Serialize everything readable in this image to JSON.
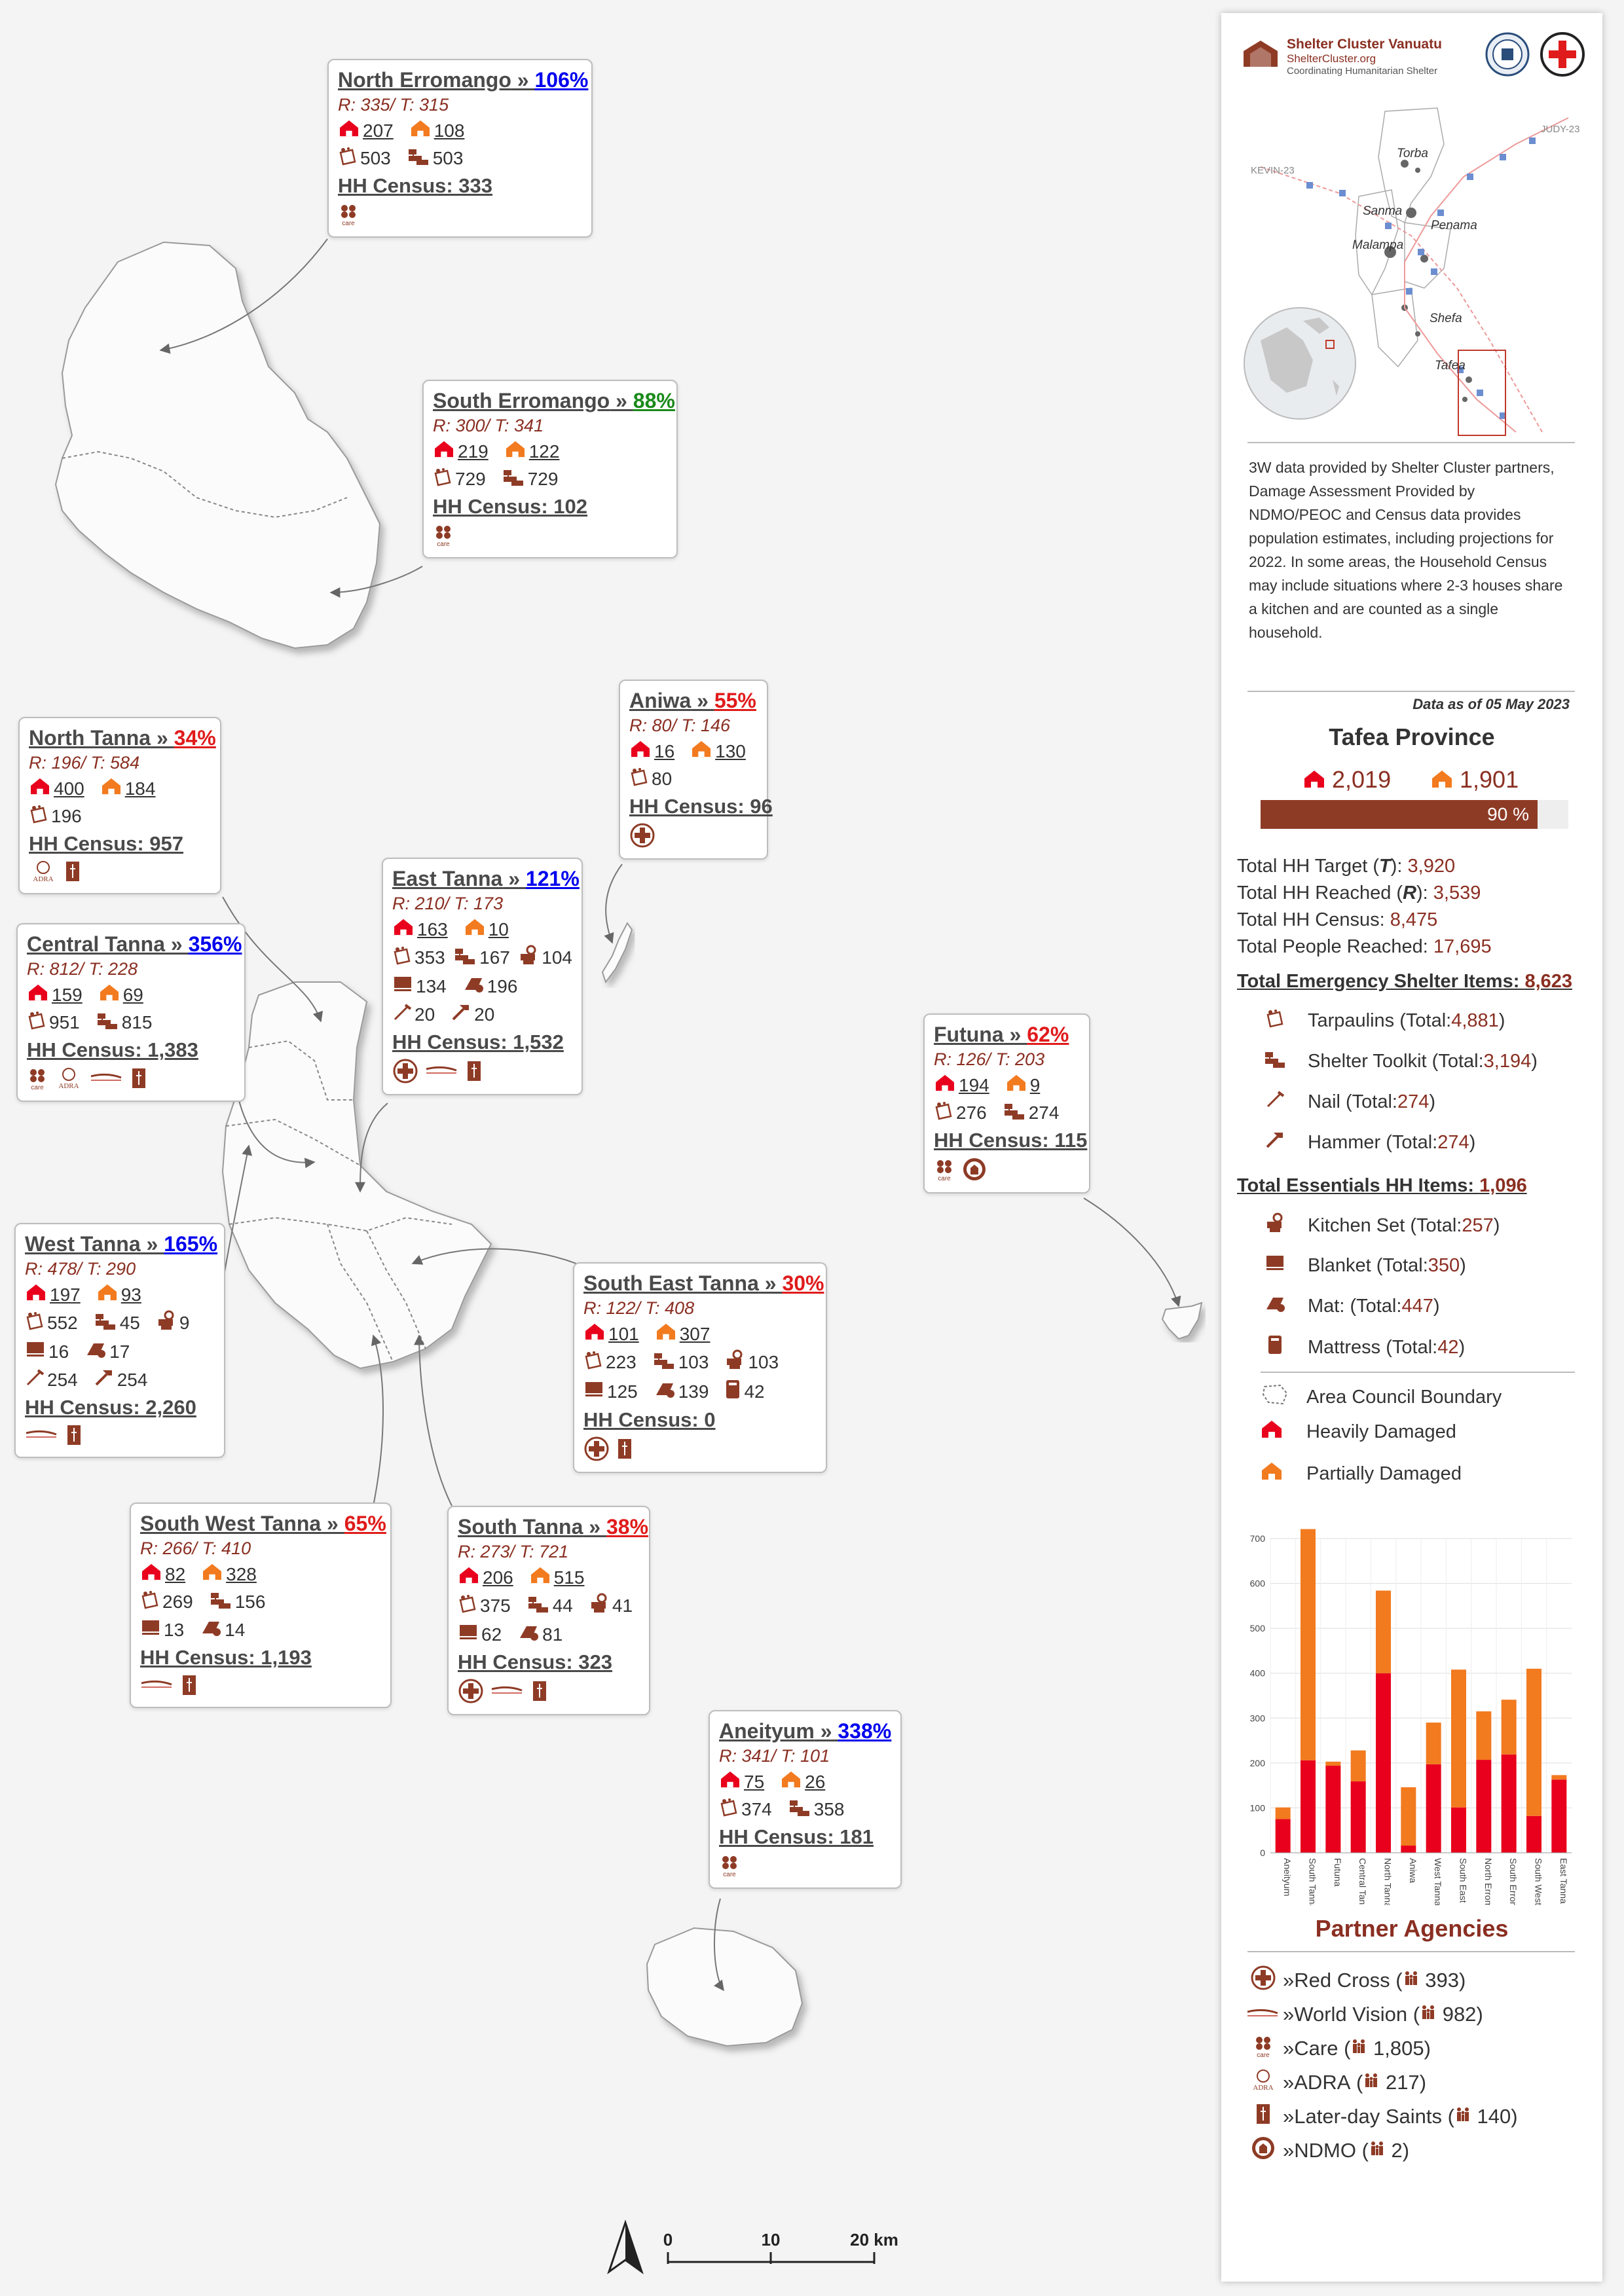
{
  "colors": {
    "heavy": "#e8001c",
    "partial": "#f27a1f",
    "accent": "#8a2f22",
    "brown": "#8e3b26",
    "blue": "#0000ee",
    "red": "#e01b1b",
    "green": "#1a8a1a"
  },
  "boxes": [
    {
      "id": "north-erromango",
      "name": "North Erromango",
      "pct": "106%",
      "pct_color": "#0000ee",
      "rt": "R: 335/ T: 315",
      "heavy": "207",
      "partial": "108",
      "tarp": "503",
      "toolkit": "503",
      "hh": "HH Census: 333",
      "logos": [
        "care"
      ]
    },
    {
      "id": "south-erromango",
      "name": "South Erromango",
      "pct": "88%",
      "pct_color": "#1a8a1a",
      "rt": "R: 300/ T: 341",
      "heavy": "219",
      "partial": "122",
      "tarp": "729",
      "toolkit": "729",
      "hh": "HH Census: 102",
      "logos": [
        "care"
      ]
    },
    {
      "id": "north-tanna",
      "name": "North Tanna",
      "pct": "34%",
      "pct_color": "#e01b1b",
      "rt": "R: 196/ T: 584",
      "heavy": "400",
      "partial": "184",
      "tarp": "196",
      "hh": "HH Census: 957",
      "logos": [
        "adra",
        "lds"
      ]
    },
    {
      "id": "aniwa",
      "name": "Aniwa",
      "pct": "55%",
      "pct_color": "#e01b1b",
      "rt": "R: 80/ T: 146",
      "heavy": "16",
      "partial": "130",
      "tarp": "80",
      "hh": "HH Census: 96",
      "logos": [
        "redcross"
      ]
    },
    {
      "id": "east-tanna",
      "name": "East Tanna",
      "pct": "121%",
      "pct_color": "#0000ee",
      "rt": "R: 210/ T: 173",
      "heavy": "163",
      "partial": "10",
      "tarp": "353",
      "toolkit": "167",
      "kitchen": "104",
      "blanket": "134",
      "mat": "196",
      "nail": "20",
      "hammer": "20",
      "hh": "HH Census: 1,532",
      "logos": [
        "redcross",
        "worldvision",
        "lds"
      ]
    },
    {
      "id": "central-tanna",
      "name": "Central Tanna",
      "pct": "356%",
      "pct_color": "#0000ee",
      "rt": "R: 812/ T: 228",
      "heavy": "159",
      "partial": "69",
      "tarp": "951",
      "toolkit": "815",
      "hh": "HH Census: 1,383",
      "logos": [
        "care",
        "adra",
        "worldvision",
        "lds"
      ]
    },
    {
      "id": "futuna",
      "name": "Futuna",
      "pct": "62%",
      "pct_color": "#e01b1b",
      "rt": "R: 126/ T: 203",
      "heavy": "194",
      "partial": "9",
      "tarp": "276",
      "toolkit": "274",
      "hh": "HH Census: 115",
      "logos": [
        "care",
        "ndmo"
      ]
    },
    {
      "id": "west-tanna",
      "name": "West Tanna",
      "pct": "165%",
      "pct_color": "#0000ee",
      "rt": "R: 478/ T: 290",
      "heavy": "197",
      "partial": "93",
      "tarp": "552",
      "toolkit": "45",
      "kitchen": "9",
      "blanket": "16",
      "mat": "17",
      "nail": "254",
      "hammer": "254",
      "hh": "HH Census: 2,260",
      "logos": [
        "worldvision",
        "lds"
      ]
    },
    {
      "id": "south-east-tanna",
      "name": "South East Tanna",
      "pct": "30%",
      "pct_color": "#e01b1b",
      "rt": "R: 122/ T: 408",
      "heavy": "101",
      "partial": "307",
      "tarp": "223",
      "toolkit": "103",
      "kitchen": "103",
      "blanket": "125",
      "mat": "139",
      "mattress": "42",
      "hh": "HH Census: 0",
      "logos": [
        "redcross",
        "lds"
      ]
    },
    {
      "id": "south-west-tanna",
      "name": "South West Tanna",
      "pct": "65%",
      "pct_color": "#e01b1b",
      "rt": "R: 266/ T: 410",
      "heavy": "82",
      "partial": "328",
      "tarp": "269",
      "toolkit": "156",
      "blanket": "13",
      "mat": "14",
      "hh": "HH Census: 1,193",
      "logos": [
        "worldvision",
        "lds"
      ]
    },
    {
      "id": "south-tanna",
      "name": "South Tanna",
      "pct": "38%",
      "pct_color": "#e01b1b",
      "rt": "R: 273/ T: 721",
      "heavy": "206",
      "partial": "515",
      "tarp": "375",
      "toolkit": "44",
      "kitchen": "41",
      "blanket": "62",
      "mat": "81",
      "hh": "HH Census: 323",
      "logos": [
        "redcross",
        "worldvision",
        "lds"
      ]
    },
    {
      "id": "aneityum",
      "name": "Aneityum",
      "pct": "338%",
      "pct_color": "#0000ee",
      "rt": "R: 341/ T: 101",
      "heavy": "75",
      "partial": "26",
      "tarp": "374",
      "toolkit": "358",
      "hh": "HH Census: 181",
      "logos": [
        "care"
      ]
    }
  ],
  "map_labels": {
    "scale_0": "0",
    "scale_10": "10",
    "scale_20": "20 km"
  },
  "inset": {
    "labels": [
      "Torba",
      "Sanma",
      "Penama",
      "Malampa",
      "Shefa",
      "Tafea"
    ],
    "tracks": [
      "KEVIN-23",
      "JUDY-23"
    ]
  },
  "panel": {
    "org": "Shelter Cluster Vanuatu",
    "org_url": "ShelterCluster.org",
    "org_tag": "Coordinating Humanitarian Shelter",
    "description": "3W data provided by Shelter Cluster partners, Damage Assessment Provided by NDMO/PEOC and Census data provides population estimates, including projections for 2022. In some areas, the Household Census may include situations where 2-3 houses share a kitchen and are counted as a single household.",
    "as_of": "Data as of 05 May 2023",
    "province": "Tafea Province",
    "heavy_total": "2,019",
    "partial_total": "1,901",
    "progress": 0.9,
    "progress_label": "90 %",
    "stats": [
      {
        "label": "Total HH Target (",
        "mid": "T",
        "after": "): ",
        "value": "3,920"
      },
      {
        "label": "Total HH Reached (",
        "mid": "R",
        "after": "): ",
        "value": "3,539"
      },
      {
        "label": "Total HH Census: ",
        "mid": "",
        "after": "",
        "value": "8,475"
      },
      {
        "label": "Total People Reached: ",
        "mid": "",
        "after": "",
        "value": "17,695"
      }
    ],
    "esi_title": "Total Emergency Shelter Items: ",
    "esi_value": "8,623",
    "esi": [
      {
        "icon": "tarpaulin-icon",
        "label": "Tarpaulins (Total: ",
        "value": "4,881",
        "close": ")"
      },
      {
        "icon": "shelter-toolkit-icon",
        "label": "Shelter Toolkit (Total: ",
        "value": "3,194",
        "close": ")"
      },
      {
        "icon": "nail-icon",
        "label": "Nail (Total: ",
        "value": "274",
        "close": " )"
      },
      {
        "icon": "hammer-icon",
        "label": "Hammer (Total: ",
        "value": "274",
        "close": " )"
      }
    ],
    "ehi_title": "Total Essentials HH Items: ",
    "ehi_value": "1,096",
    "ehi": [
      {
        "icon": "kitchen-set-icon",
        "label": "Kitchen Set (Total: ",
        "value": "257",
        "close": ")"
      },
      {
        "icon": "blanket-icon",
        "label": "Blanket (Total: ",
        "value": "350",
        "close": ")"
      },
      {
        "icon": "mat-icon",
        "label": "Mat: (Total: ",
        "value": "447",
        "close": ")"
      },
      {
        "icon": "mattress-icon",
        "label": "Mattress (Total: ",
        "value": "42",
        "close": " )"
      }
    ],
    "legend": [
      {
        "icon": "area-boundary-icon",
        "label": "Area Council Boundary"
      },
      {
        "icon": "heavily-damaged-icon",
        "label": "Heavily Damaged"
      },
      {
        "icon": "partially-damaged-icon",
        "label": "Partially Damaged"
      }
    ],
    "partners_title": "Partner Agencies",
    "partners": [
      {
        "icon": "redcross",
        "name": "Red Cross",
        "count": "393"
      },
      {
        "icon": "worldvision",
        "name": "World Vision",
        "count": "982"
      },
      {
        "icon": "care",
        "name": "Care",
        "count": "1,805"
      },
      {
        "icon": "adra",
        "name": "ADRA",
        "count": "217"
      },
      {
        "icon": "lds",
        "name": "Later-day Saints",
        "count": "140"
      },
      {
        "icon": "ndmo",
        "name": "NDMO",
        "count": "2"
      }
    ]
  },
  "chart_data": {
    "type": "bar",
    "stacked": true,
    "categories": [
      "Aneityum",
      "South Tanna",
      "Futuna",
      "Central Tanna",
      "North Tanna",
      "Aniwa",
      "West Tanna",
      "South East Tanna",
      "North Erromango",
      "South Erromango",
      "South West Tanna",
      "East Tanna"
    ],
    "series": [
      {
        "name": "Heavily Damaged",
        "color": "#e8001c",
        "values": [
          75,
          206,
          194,
          159,
          400,
          16,
          197,
          101,
          207,
          219,
          82,
          163
        ]
      },
      {
        "name": "Partially Damaged",
        "color": "#f27a1f",
        "values": [
          26,
          515,
          9,
          69,
          184,
          130,
          93,
          307,
          108,
          122,
          328,
          10
        ]
      }
    ],
    "ylim": [
      0,
      700
    ],
    "yticks": [
      0,
      100,
      200,
      300,
      400,
      500,
      600,
      700
    ],
    "grid": true
  }
}
